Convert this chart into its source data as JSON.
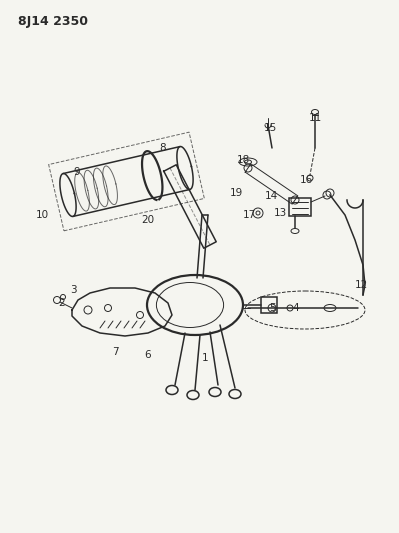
{
  "title": "8J14 2350",
  "bg_color": "#f5f5f0",
  "line_color": "#2a2a2a",
  "fig_width": 3.99,
  "fig_height": 5.33,
  "dpi": 100,
  "labels": [
    [
      77,
      172,
      "9"
    ],
    [
      163,
      148,
      "8"
    ],
    [
      42,
      215,
      "10"
    ],
    [
      148,
      220,
      "20"
    ],
    [
      62,
      303,
      "2"
    ],
    [
      73,
      290,
      "3"
    ],
    [
      115,
      352,
      "7"
    ],
    [
      148,
      355,
      "6"
    ],
    [
      205,
      358,
      "1"
    ],
    [
      272,
      308,
      "5"
    ],
    [
      296,
      308,
      "4"
    ],
    [
      361,
      285,
      "12"
    ],
    [
      270,
      128,
      "15"
    ],
    [
      315,
      118,
      "11"
    ],
    [
      243,
      160,
      "18"
    ],
    [
      236,
      193,
      "19"
    ],
    [
      271,
      196,
      "14"
    ],
    [
      249,
      215,
      "17"
    ],
    [
      306,
      180,
      "16"
    ],
    [
      280,
      213,
      "13"
    ]
  ]
}
